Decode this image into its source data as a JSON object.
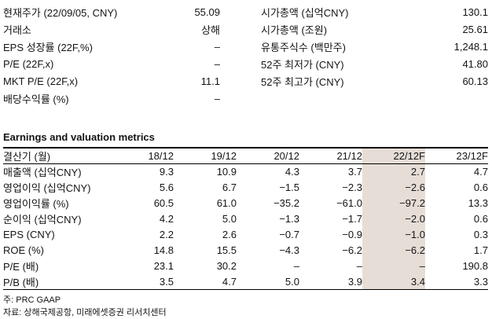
{
  "quote": {
    "left": [
      {
        "label": "현재주가 (22/09/05, CNY)",
        "value": "55.09"
      },
      {
        "label": "거래소",
        "value": "상해"
      },
      {
        "label": "EPS 성장률 (22F,%)",
        "value": "–"
      },
      {
        "label": "P/E (22F,x)",
        "value": "–"
      },
      {
        "label": "MKT P/E (22F,x)",
        "value": "11.1"
      },
      {
        "label": "배당수익률 (%)",
        "value": "–"
      }
    ],
    "right": [
      {
        "label": "시가총액 (십억CNY)",
        "value": "130.1"
      },
      {
        "label": "시가총액 (조원)",
        "value": "25.61"
      },
      {
        "label": "유통주식수 (백만주)",
        "value": "1,248.1"
      },
      {
        "label": "52주 최저가 (CNY)",
        "value": "41.80"
      },
      {
        "label": "52주 최고가 (CNY)",
        "value": "60.13"
      }
    ]
  },
  "table": {
    "title": "Earnings and valuation metrics",
    "columns": [
      "결산기 (월)",
      "18/12",
      "19/12",
      "20/12",
      "21/12",
      "22/12F",
      "23/12F"
    ],
    "highlight_column": "22/12F",
    "highlight_color": "#e6ddd6",
    "rows": [
      {
        "label": "매출액 (십억CNY)",
        "values": [
          "9.3",
          "10.9",
          "4.3",
          "3.7",
          "2.7",
          "4.7"
        ]
      },
      {
        "label": "영업이익 (십억CNY)",
        "values": [
          "5.6",
          "6.7",
          "−1.5",
          "−2.3",
          "−2.6",
          "0.6"
        ]
      },
      {
        "label": "영업이익률 (%)",
        "values": [
          "60.5",
          "61.0",
          "−35.2",
          "−61.0",
          "−97.2",
          "13.3"
        ]
      },
      {
        "label": "순이익 (십억CNY)",
        "values": [
          "4.2",
          "5.0",
          "−1.3",
          "−1.7",
          "−2.0",
          "0.6"
        ]
      },
      {
        "label": "EPS (CNY)",
        "values": [
          "2.2",
          "2.6",
          "−0.7",
          "−0.9",
          "−1.0",
          "0.3"
        ]
      },
      {
        "label": "ROE (%)",
        "values": [
          "14.8",
          "15.5",
          "−4.3",
          "−6.2",
          "−6.2",
          "1.7"
        ]
      },
      {
        "label": "P/E (배)",
        "values": [
          "23.1",
          "30.2",
          "–",
          "–",
          "–",
          "190.8"
        ]
      },
      {
        "label": "P/B (배)",
        "values": [
          "3.5",
          "4.7",
          "5.0",
          "3.9",
          "3.4",
          "3.3"
        ]
      }
    ]
  },
  "notes": [
    "주: PRC GAAP",
    "자료: 상해국제공항, 미래에셋증권 리서치센터"
  ]
}
